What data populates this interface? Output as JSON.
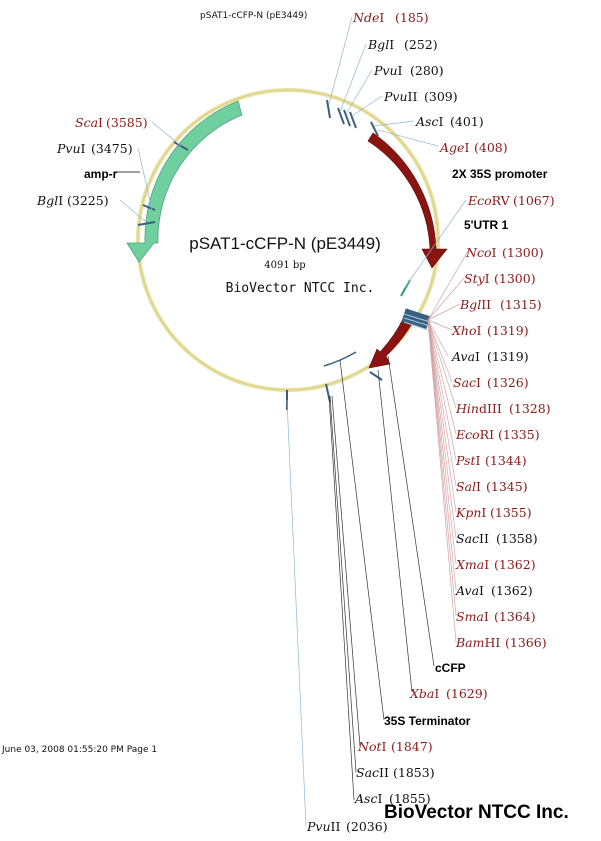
{
  "header": {
    "title": "pSAT1-cCFP-N (pE3449)"
  },
  "center": {
    "name": "pSAT1-cCFP-N (pE3449)",
    "size": "4091 bp",
    "company": "BioVector NTCC Inc."
  },
  "footer": {
    "timestamp": "June 03, 2008 01:55:20 PM Page 1",
    "company": "BioVector NTCC Inc."
  },
  "features": {
    "amp_r": "amp-r",
    "promoter": "2X 35S promoter",
    "utr": "5'UTR 1",
    "cfp": "cCFP",
    "terminator": "35S Terminator"
  },
  "sites": [
    {
      "name": "NdeI",
      "pos": "(185)",
      "color": "red"
    },
    {
      "name": "BglI",
      "pos": "(252)",
      "color": "black"
    },
    {
      "name": "PvuI",
      "pos": "(280)",
      "color": "black"
    },
    {
      "name": "PvuII",
      "pos": "(309)",
      "color": "black"
    },
    {
      "name": "AscI",
      "pos": "(401)",
      "color": "black"
    },
    {
      "name": "AgeI",
      "pos": "(408)",
      "color": "red"
    },
    {
      "name": "EcoRV",
      "pos": "(1067)",
      "color": "red"
    },
    {
      "name": "NcoI",
      "pos": "(1300)",
      "color": "red"
    },
    {
      "name": "StyI",
      "pos": "(1300)",
      "color": "red"
    },
    {
      "name": "BglII",
      "pos": "(1315)",
      "color": "red"
    },
    {
      "name": "XhoI",
      "pos": "(1319)",
      "color": "red"
    },
    {
      "name": "AvaI",
      "pos": "(1319)",
      "color": "black"
    },
    {
      "name": "SacI",
      "pos": "(1326)",
      "color": "red"
    },
    {
      "name": "HindIII",
      "pos": "(1328)",
      "color": "red"
    },
    {
      "name": "EcoRI",
      "pos": "(1335)",
      "color": "red"
    },
    {
      "name": "PstI",
      "pos": "(1344)",
      "color": "red"
    },
    {
      "name": "SalI",
      "pos": "(1345)",
      "color": "red"
    },
    {
      "name": "KpnI",
      "pos": "(1355)",
      "color": "red"
    },
    {
      "name": "SacII",
      "pos": "(1358)",
      "color": "black"
    },
    {
      "name": "XmaI",
      "pos": "(1362)",
      "color": "red"
    },
    {
      "name": "AvaI",
      "pos": "(1362)",
      "color": "black"
    },
    {
      "name": "SmaI",
      "pos": "(1364)",
      "color": "red"
    },
    {
      "name": "BamHI",
      "pos": "(1366)",
      "color": "red"
    },
    {
      "name": "XbaI",
      "pos": "(1629)",
      "color": "red"
    },
    {
      "name": "NotI",
      "pos": "(1847)",
      "color": "red"
    },
    {
      "name": "SacII",
      "pos": "(1853)",
      "color": "black"
    },
    {
      "name": "AscI",
      "pos": "(1855)",
      "color": "black"
    },
    {
      "name": "PvuII",
      "pos": "(2036)",
      "color": "black"
    },
    {
      "name": "ScaI",
      "pos": "(3585)",
      "color": "red"
    },
    {
      "name": "PvuI",
      "pos": "(3475)",
      "color": "black"
    },
    {
      "name": "BglI",
      "pos": "(3225)",
      "color": "black"
    }
  ],
  "colors": {
    "red_label": "#8b1a1a",
    "backbone": "#e8e0a0",
    "red_arrow": "#8b1410",
    "green_arrow": "#6fcf9f",
    "tick": "#3a5f7f"
  }
}
